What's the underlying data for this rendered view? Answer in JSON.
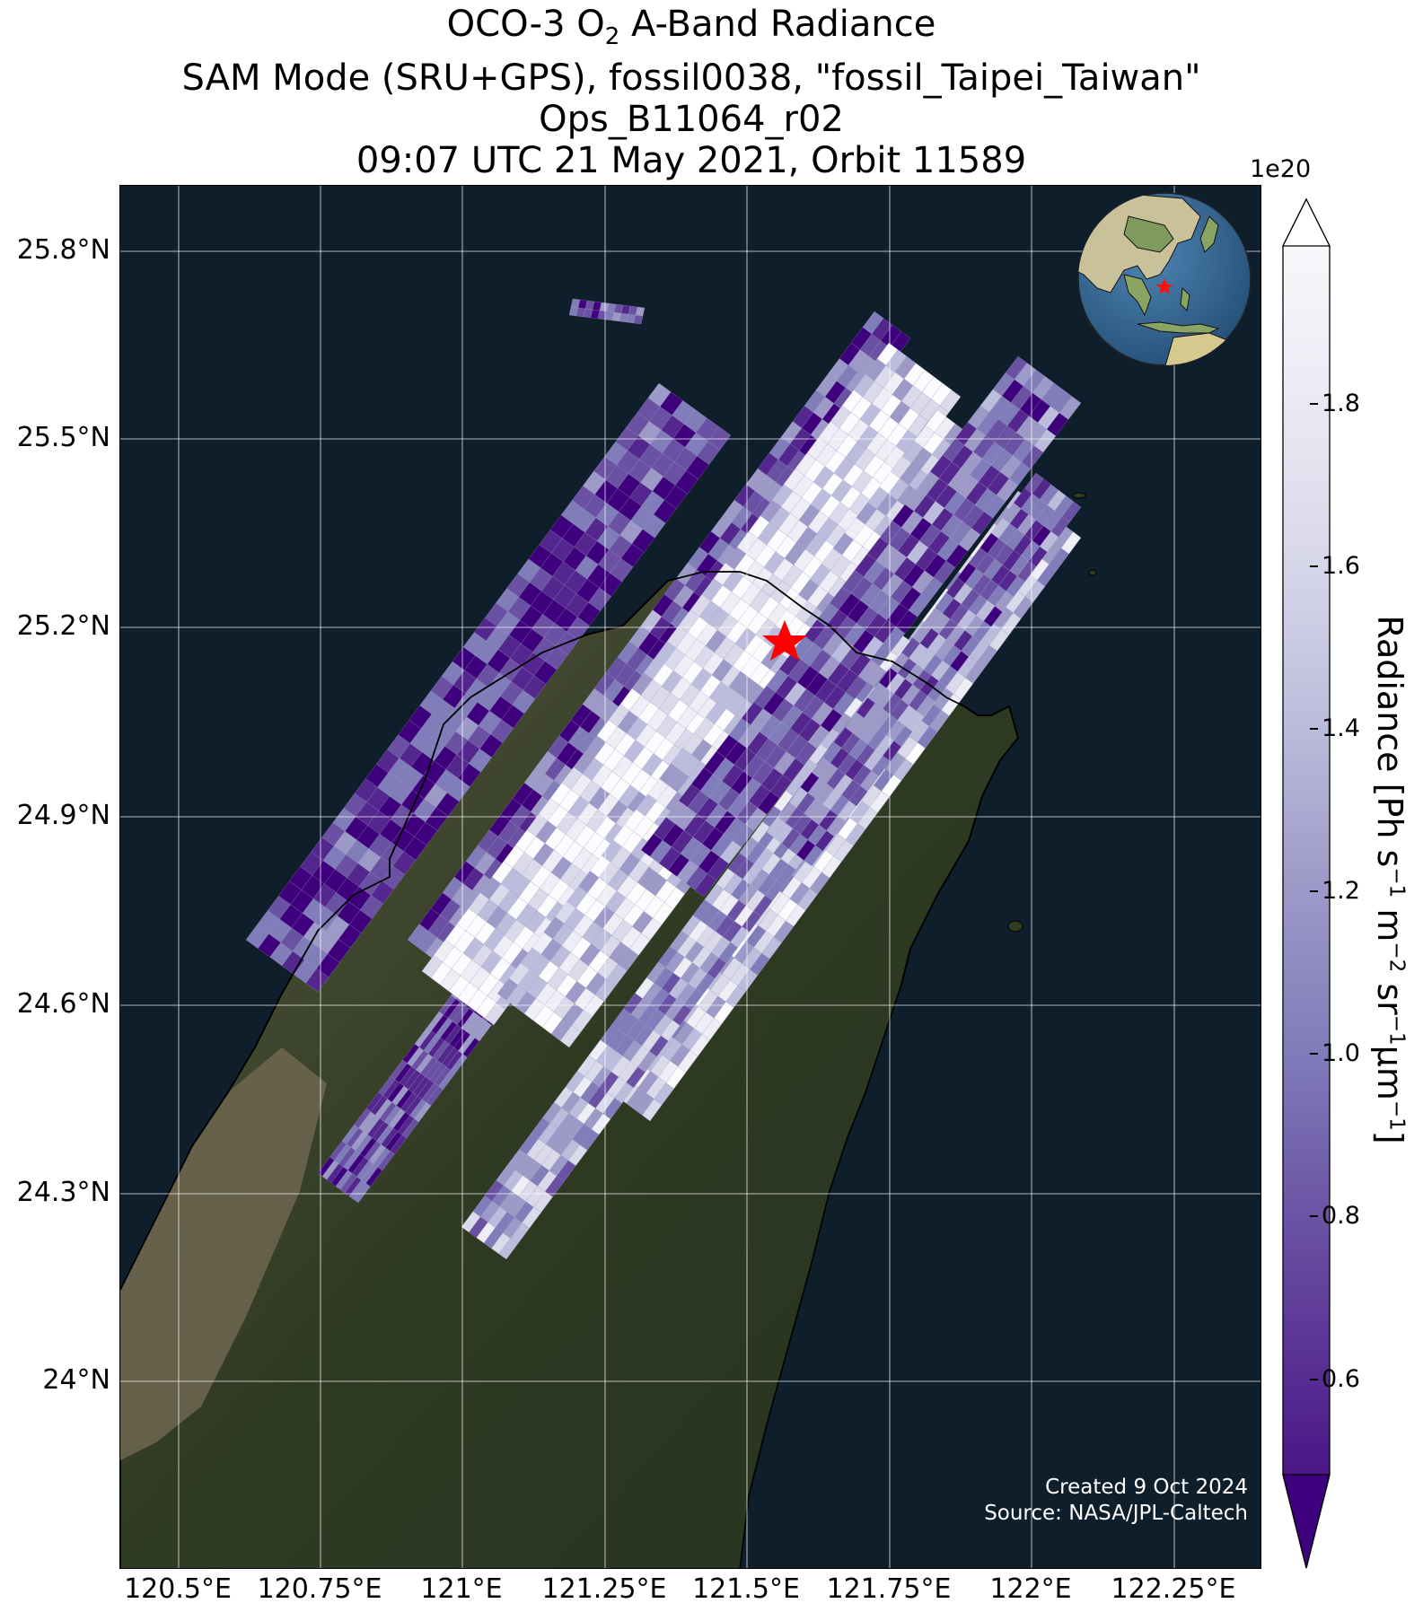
{
  "title": {
    "line1_prefix": "OCO-3 O",
    "line1_sub": "2",
    "line1_suffix": " A-Band Radiance",
    "line2": "SAM Mode (SRU+GPS), fossil0038, \"fossil_Taipei_Taiwan\"",
    "line3": "Ops_B11064_r02",
    "line4": "09:07 UTC 21 May 2021, Orbit 11589"
  },
  "map": {
    "lat_ticks": [
      "25.8°N",
      "25.5°N",
      "25.2°N",
      "24.9°N",
      "24.6°N",
      "24.3°N",
      "24°N"
    ],
    "lon_ticks": [
      "120.5°E",
      "120.75°E",
      "121°E",
      "121.25°E",
      "121.5°E",
      "121.75°E",
      "122°E",
      "122.25°E"
    ],
    "target_marker": "red-star",
    "ocean_color": "#0f1e2b",
    "land_color": "#3a4128"
  },
  "colorbar": {
    "exponent": "1e20",
    "ticks": [
      "0.6",
      "0.8",
      "1.0",
      "1.2",
      "1.4",
      "1.6",
      "1.8"
    ],
    "title_parts": [
      "Radiance [Ph s",
      "−1",
      " m",
      "−2",
      " sr",
      "−1",
      "μm",
      "−1",
      "]"
    ],
    "colormap": [
      "#3f007d",
      "#54278f",
      "#6a51a3",
      "#807dba",
      "#9e9ac8",
      "#bcbddc",
      "#dadaeb",
      "#efedf5",
      "#fcfbfd"
    ]
  },
  "credits": {
    "created": "Created 9 Oct 2024",
    "source": "Source: NASA/JPL-Caltech"
  }
}
